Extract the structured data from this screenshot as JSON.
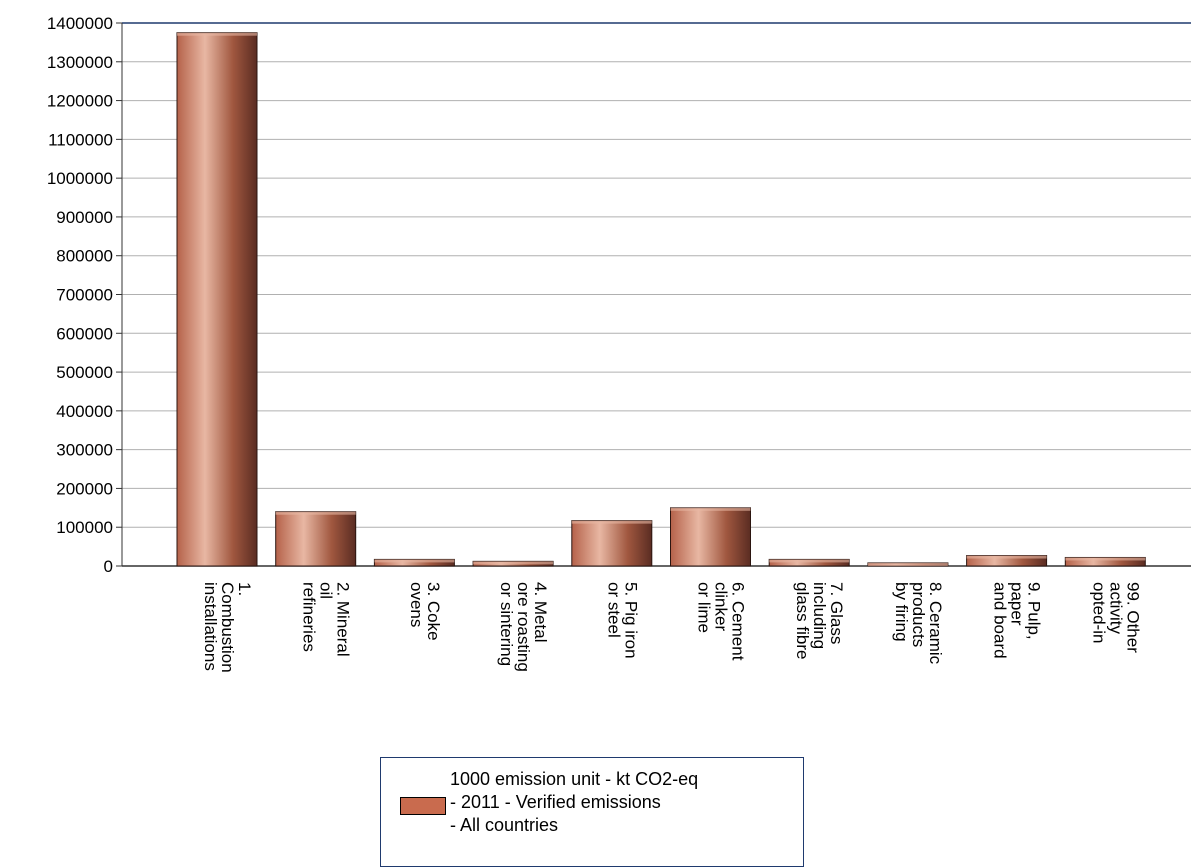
{
  "chart_data": {
    "type": "bar",
    "categories": [
      [
        "1.",
        "Combustion",
        "installations"
      ],
      [
        "2. Mineral",
        "oil",
        "refineries"
      ],
      [
        "3. Coke",
        "ovens"
      ],
      [
        "4. Metal",
        "ore roasting",
        "or sintering"
      ],
      [
        "5. Pig iron",
        "or steel"
      ],
      [
        "6. Cement",
        "clinker",
        "or lime"
      ],
      [
        "7. Glass",
        "including",
        "glass fibre"
      ],
      [
        "8. Ceramic",
        "products",
        "by firing"
      ],
      [
        "9. Pulp,",
        "paper",
        "and board"
      ],
      [
        "99. Other",
        "activity",
        "opted-in"
      ]
    ],
    "series": [
      {
        "name": "1000 emission unit - kt CO2-eq - 2011 - Verified emissions - All countries",
        "values": [
          1375000,
          140000,
          17000,
          12000,
          117000,
          150000,
          17000,
          8000,
          27000,
          22000
        ]
      }
    ],
    "yticks": [
      "0",
      "100000",
      "200000",
      "300000",
      "400000",
      "500000",
      "600000",
      "700000",
      "800000",
      "900000",
      "1000000",
      "1100000",
      "1200000",
      "1300000",
      "1400000"
    ],
    "ylim": [
      0,
      1400000
    ],
    "grid": true,
    "legend": {
      "position": "bottom",
      "lines": [
        "1000 emission unit - kt CO2-eq",
        "- 2011 - Verified emissions",
        "- All countries"
      ]
    },
    "colors": {
      "bar": "#c96b4e",
      "bar_light": "#e8b7a3",
      "bar_dark": "#5a2c22",
      "grid": "#b0b0b0",
      "axis": "#1f3a6e"
    }
  }
}
